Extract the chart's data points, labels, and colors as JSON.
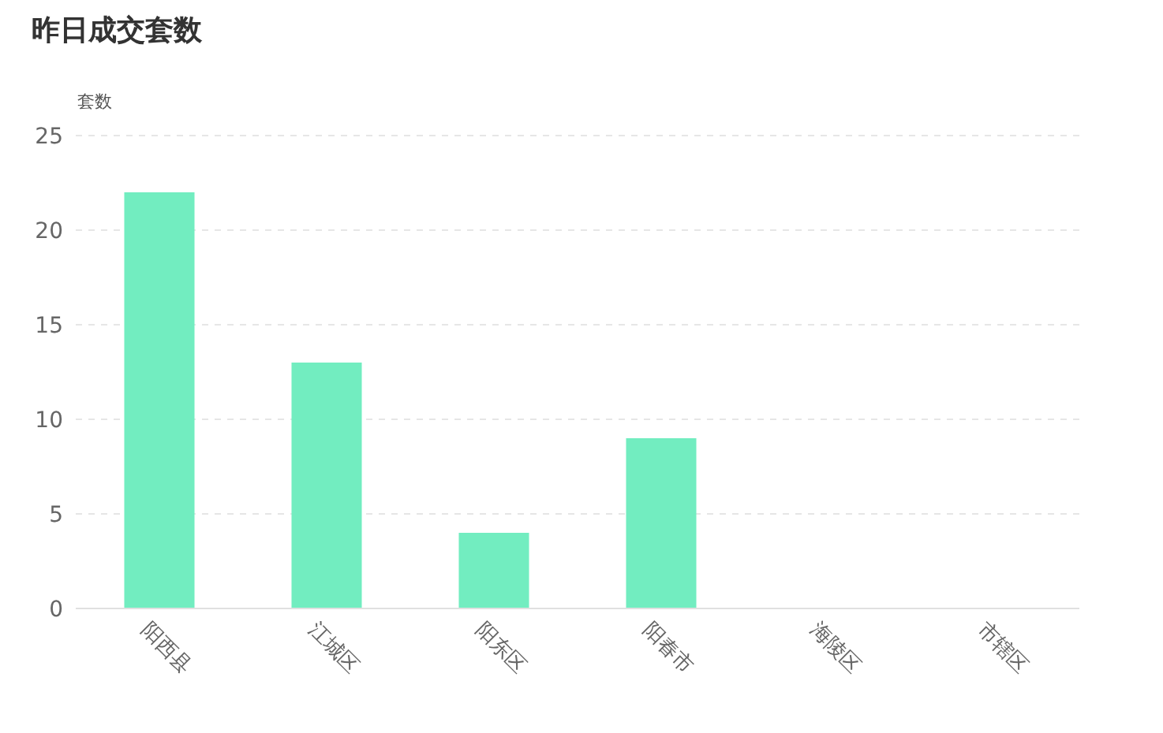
{
  "chart_data": {
    "type": "bar",
    "title": "昨日成交套数",
    "ylabel": "套数",
    "categories": [
      "阳西县",
      "江城区",
      "阳东区",
      "阳春市",
      "海陵区",
      "市辖区"
    ],
    "values": [
      22,
      13,
      4,
      9,
      0,
      0
    ],
    "color": "#72edc0",
    "ylim": [
      0,
      25
    ],
    "yticks": [
      0,
      5,
      10,
      15,
      20,
      25
    ],
    "grid": "y"
  }
}
